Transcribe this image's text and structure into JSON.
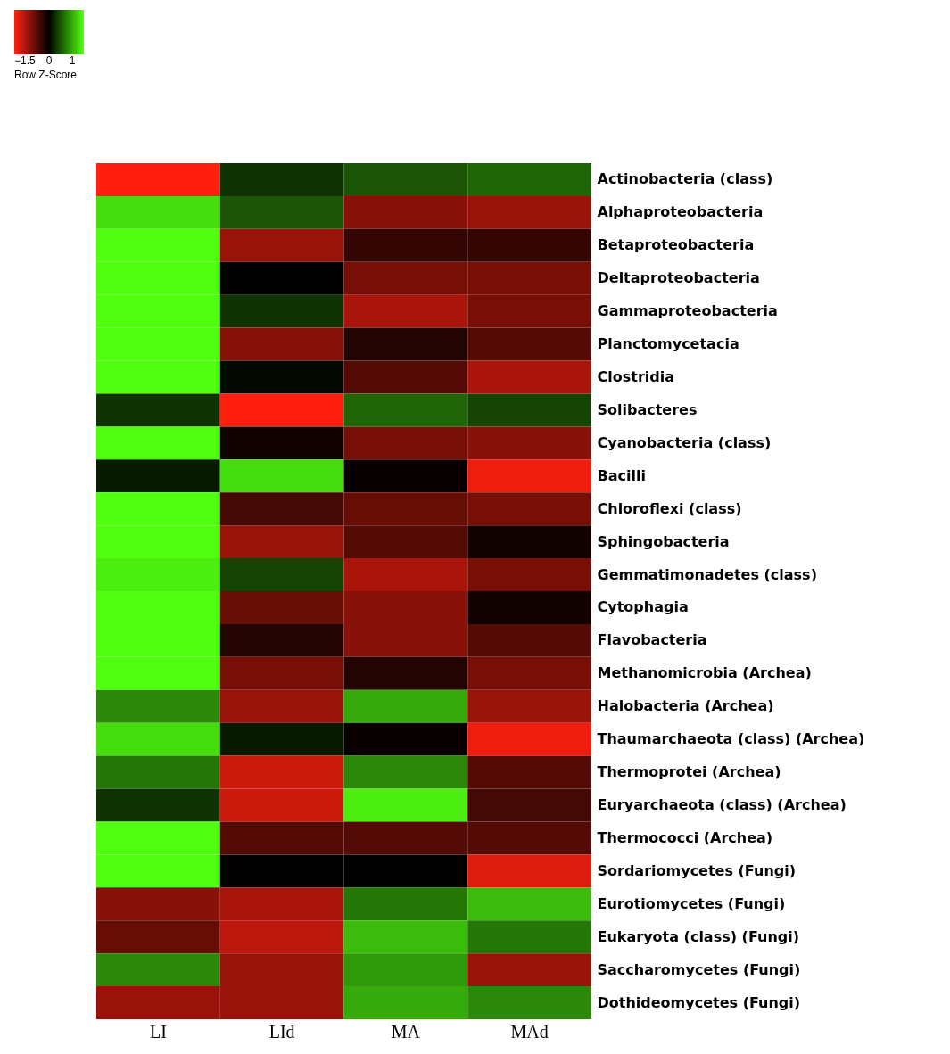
{
  "chart_data": {
    "type": "heatmap",
    "categories": [
      "LI",
      "LId",
      "MA",
      "MAd"
    ],
    "y_categories": [
      "Actinobacteria (class)",
      "Alphaproteobacteria",
      "Betaproteobacteria",
      "Deltaproteobacteria",
      "Gammaproteobacteria",
      "Planctomycetacia",
      "Clostridia",
      "Solibacteres",
      "Cyanobacteria (class)",
      "Bacilli",
      "Chloroflexi (class)",
      "Sphingobacteria",
      "Gemmatimonadetes (class)",
      "Cytophagia",
      "Flavobacteria",
      "Methanomicrobia (Archea)",
      "Halobacteria (Archea)",
      "Thaumarchaeota (class) (Archea)",
      "Thermoprotei (Archea)",
      "Euryarchaeota (class) (Archea)",
      "Thermococci (Archea)",
      "Sordariomycetes (Fungi)",
      "Eurotiomycetes (Fungi)",
      "Eukaryota (class) (Fungi)",
      "Saccharomycetes (Fungi)",
      "Dothideomycetes (Fungi)"
    ],
    "cells": [
      [
        -1.5,
        0.3,
        0.5,
        0.6
      ],
      [
        1.3,
        0.5,
        -0.8,
        -0.9
      ],
      [
        1.5,
        -0.9,
        -0.3,
        -0.3
      ],
      [
        1.5,
        0,
        -0.7,
        -0.7
      ],
      [
        1.5,
        0.3,
        -1.0,
        -0.7
      ],
      [
        1.5,
        -0.8,
        -0.2,
        -0.5
      ],
      [
        1.5,
        0.05,
        -0.5,
        -1.0
      ],
      [
        0.3,
        -1.5,
        0.6,
        0.4
      ],
      [
        1.5,
        -0.1,
        -0.7,
        -0.8
      ],
      [
        0.15,
        1.3,
        -0.05,
        -1.4
      ],
      [
        1.5,
        -0.4,
        -0.6,
        -0.7
      ],
      [
        1.5,
        -0.9,
        -0.5,
        -0.1
      ],
      [
        1.4,
        0.4,
        -1.0,
        -0.7
      ],
      [
        1.5,
        -0.6,
        -0.8,
        -0.1
      ],
      [
        1.5,
        -0.2,
        -0.8,
        -0.5
      ],
      [
        1.5,
        -0.7,
        -0.2,
        -0.7
      ],
      [
        0.8,
        -0.9,
        1.0,
        -0.9
      ],
      [
        1.3,
        0.15,
        -0.05,
        -1.4
      ],
      [
        0.7,
        -1.2,
        0.8,
        -0.5
      ],
      [
        0.3,
        -1.2,
        1.4,
        -0.4
      ],
      [
        1.5,
        -0.5,
        -0.5,
        -0.5
      ],
      [
        1.5,
        0,
        0,
        -1.3
      ],
      [
        -0.8,
        -1.0,
        0.7,
        1.1
      ],
      [
        -0.6,
        -1.1,
        1.1,
        0.7
      ],
      [
        0.8,
        -0.9,
        0.9,
        -0.9
      ],
      [
        -0.9,
        -0.9,
        1.0,
        0.8
      ]
    ],
    "clim": [
      -1.5,
      1.5
    ],
    "cticks": [
      -1.5,
      0,
      1
    ],
    "clabel": "Row Z-Score"
  }
}
